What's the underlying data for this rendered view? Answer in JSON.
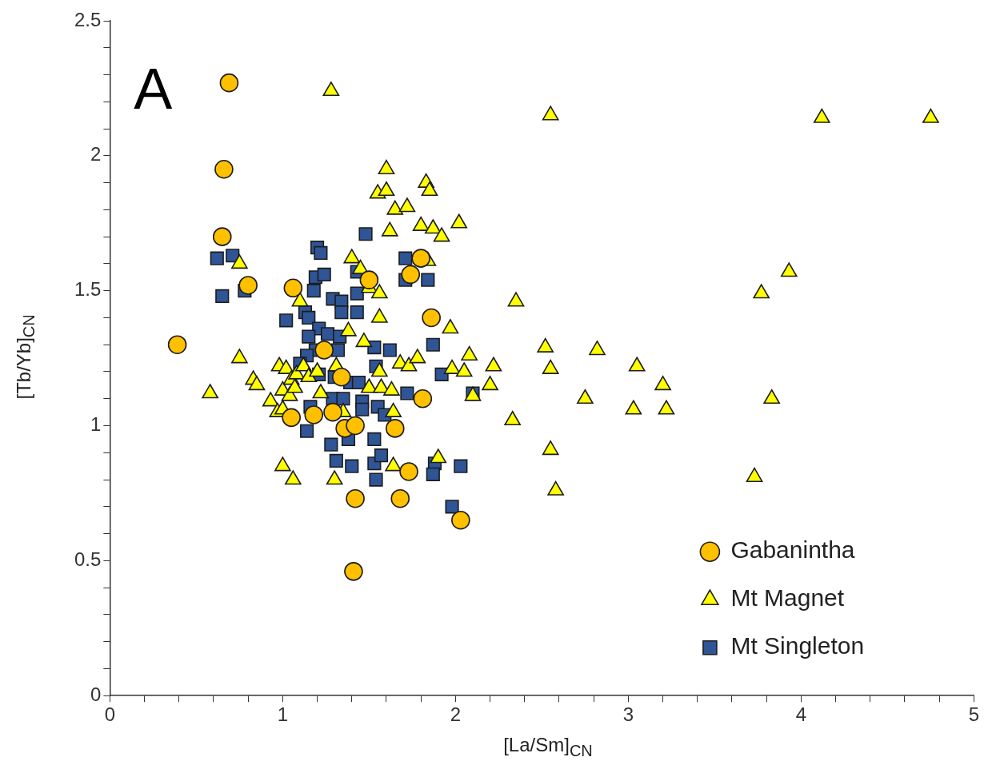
{
  "chart_data": {
    "type": "scatter",
    "xlabel": "[La/Sm]$_{CN}$",
    "ylabel": "[Tb/Yb]$_{CN}$",
    "annotations": [
      "A"
    ],
    "xlim": [
      0,
      5
    ],
    "ylim": [
      0,
      2.5
    ],
    "xticks": [
      0,
      {
        "value": 0.2,
        "label": null
      },
      {
        "value": 0.4,
        "label": null
      },
      {
        "value": 0.6,
        "label": null
      },
      {
        "value": 0.8,
        "label": null
      },
      1,
      {
        "value": 1.2,
        "label": null
      },
      {
        "value": 1.4,
        "label": null
      },
      {
        "value": 1.6,
        "label": null
      },
      {
        "value": 1.8,
        "label": null
      },
      2,
      {
        "value": 2.2,
        "label": null
      },
      {
        "value": 2.4,
        "label": null
      },
      {
        "value": 2.6,
        "label": null
      },
      {
        "value": 2.8,
        "label": null
      },
      3,
      {
        "value": 3.2,
        "label": null
      },
      {
        "value": 3.4,
        "label": null
      },
      {
        "value": 3.6,
        "label": null
      },
      {
        "value": 3.8,
        "label": null
      },
      4,
      {
        "value": 4.2,
        "label": null
      },
      {
        "value": 4.4,
        "label": null
      },
      {
        "value": 4.6,
        "label": null
      },
      {
        "value": 4.8,
        "label": null
      },
      5
    ],
    "yticks": [
      0,
      {
        "value": 0.1,
        "label": null
      },
      {
        "value": 0.2,
        "label": null
      },
      {
        "value": 0.3,
        "label": null
      },
      {
        "value": 0.4,
        "label": null
      },
      0.5,
      {
        "value": 0.6,
        "label": null
      },
      {
        "value": 0.7,
        "label": null
      },
      {
        "value": 0.8,
        "label": null
      },
      {
        "value": 0.9,
        "label": null
      },
      1,
      {
        "value": 1.1,
        "label": null
      },
      {
        "value": 1.2,
        "label": null
      },
      {
        "value": 1.3,
        "label": null
      },
      {
        "value": 1.4,
        "label": null
      },
      1.5,
      {
        "value": 1.6,
        "label": null
      },
      {
        "value": 1.7,
        "label": null
      },
      {
        "value": 1.8,
        "label": null
      },
      {
        "value": 1.9,
        "label": null
      },
      2,
      {
        "value": 2.1,
        "label": null
      },
      {
        "value": 2.2,
        "label": null
      },
      {
        "value": 2.3,
        "label": null
      },
      {
        "value": 2.4,
        "label": null
      },
      2.5
    ],
    "grid": false,
    "legend": "bottom right",
    "series": [
      {
        "name": "Gabanintha",
        "color": "#ffc000",
        "marker": "circle",
        "x": [
          0.39,
          0.69,
          0.66,
          0.65,
          0.8,
          1.06,
          1.05,
          1.24,
          1.34,
          1.36,
          1.42,
          1.42,
          1.41,
          1.68,
          2.03,
          1.73,
          1.65,
          1.81,
          1.18,
          1.29,
          1.86,
          1.8,
          1.74,
          1.5
        ],
        "values": [
          1.3,
          2.27,
          1.95,
          1.7,
          1.52,
          1.51,
          1.03,
          1.28,
          1.18,
          0.99,
          1.0,
          0.73,
          0.46,
          0.73,
          0.65,
          0.83,
          0.99,
          1.1,
          1.04,
          1.05,
          1.4,
          1.62,
          1.56,
          1.54
        ]
      },
      {
        "name": "Mt Magnet",
        "color": "#ffff00",
        "marker": "triangle",
        "x": [
          1.28,
          2.55,
          4.12,
          4.75,
          0.58,
          0.75,
          0.75,
          0.83,
          0.85,
          0.93,
          0.97,
          0.98,
          1.0,
          1.0,
          1.02,
          1.05,
          1.04,
          1.07,
          1.08,
          1.0,
          1.06,
          1.1,
          1.12,
          1.15,
          1.2,
          1.22,
          1.3,
          1.31,
          1.35,
          1.38,
          1.4,
          1.45,
          1.47,
          1.5,
          1.5,
          1.55,
          1.56,
          1.56,
          1.56,
          1.57,
          1.6,
          1.6,
          1.62,
          1.63,
          1.64,
          1.64,
          1.65,
          1.68,
          1.72,
          1.73,
          1.78,
          1.8,
          1.83,
          1.84,
          1.85,
          1.87,
          1.9,
          1.92,
          1.97,
          1.98,
          2.02,
          2.05,
          2.08,
          2.1,
          2.2,
          2.22,
          2.33,
          2.35,
          2.52,
          2.55,
          2.55,
          2.58,
          2.75,
          2.82,
          3.03,
          3.05,
          3.2,
          3.22,
          3.73,
          3.77,
          3.83,
          3.93
        ],
        "values": [
          2.24,
          2.15,
          2.14,
          2.14,
          1.12,
          1.6,
          1.25,
          1.17,
          1.15,
          1.09,
          1.05,
          1.22,
          1.06,
          1.13,
          1.21,
          1.17,
          1.11,
          1.14,
          1.19,
          0.85,
          0.8,
          1.46,
          1.22,
          1.18,
          1.2,
          1.12,
          0.8,
          1.22,
          1.05,
          1.35,
          1.62,
          1.58,
          1.31,
          1.14,
          1.51,
          1.86,
          1.49,
          1.4,
          1.2,
          1.14,
          1.95,
          1.87,
          1.72,
          1.13,
          1.05,
          0.85,
          1.8,
          1.23,
          1.81,
          1.22,
          1.25,
          1.74,
          1.9,
          1.61,
          1.87,
          1.73,
          0.88,
          1.7,
          1.36,
          1.21,
          1.75,
          1.2,
          1.26,
          1.11,
          1.15,
          1.22,
          1.02,
          1.46,
          1.29,
          1.21,
          0.91,
          0.76,
          1.1,
          1.28,
          1.06,
          1.22,
          1.15,
          1.06,
          0.81,
          1.49,
          1.1,
          1.57
        ]
      },
      {
        "name": "Mt Singleton",
        "color": "#2f5597",
        "marker": "square",
        "x": [
          0.62,
          0.65,
          0.71,
          0.78,
          1.02,
          1.2,
          1.22,
          1.19,
          1.24,
          1.18,
          1.13,
          1.15,
          1.21,
          1.15,
          1.19,
          1.14,
          1.1,
          1.21,
          1.16,
          1.14,
          1.29,
          1.34,
          1.34,
          1.43,
          1.43,
          1.48,
          1.43,
          1.26,
          1.33,
          1.32,
          1.3,
          1.29,
          1.35,
          1.39,
          1.44,
          1.46,
          1.53,
          1.62,
          1.54,
          1.55,
          1.59,
          1.46,
          1.28,
          1.31,
          1.38,
          1.4,
          1.53,
          1.53,
          1.57,
          1.54,
          1.72,
          1.71,
          1.71,
          1.84,
          1.87,
          1.92,
          2.1,
          2.03,
          1.98,
          1.88,
          1.87
        ],
        "values": [
          1.62,
          1.48,
          1.63,
          1.5,
          1.39,
          1.66,
          1.64,
          1.55,
          1.56,
          1.5,
          1.42,
          1.4,
          1.36,
          1.33,
          1.28,
          1.26,
          1.23,
          1.19,
          1.07,
          0.98,
          1.47,
          1.46,
          1.42,
          1.42,
          1.49,
          1.71,
          1.57,
          1.34,
          1.33,
          1.28,
          1.18,
          1.1,
          1.1,
          1.16,
          1.16,
          1.09,
          1.29,
          1.28,
          1.22,
          1.07,
          1.04,
          1.06,
          0.93,
          0.87,
          0.95,
          0.85,
          0.95,
          0.86,
          0.89,
          0.8,
          1.12,
          1.54,
          1.62,
          1.54,
          1.3,
          1.19,
          1.12,
          0.85,
          0.7,
          0.86,
          0.82
        ]
      }
    ]
  }
}
